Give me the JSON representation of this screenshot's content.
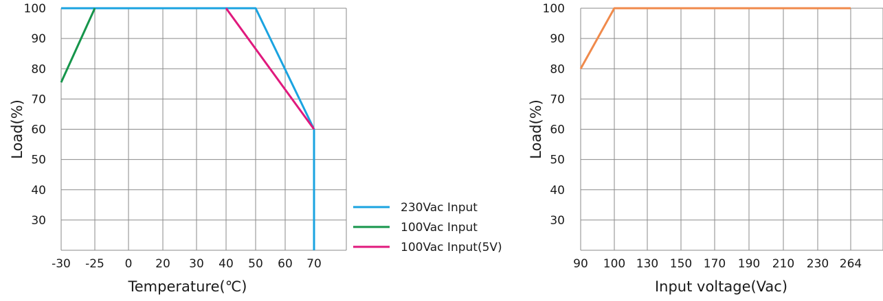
{
  "chart_data": [
    {
      "type": "line",
      "xlabel": "Temperature(℃)",
      "ylabel": "Load(%)",
      "x_ticks": [
        "-30",
        "-25",
        "0",
        "20",
        "30",
        "40",
        "50",
        "60",
        "70"
      ],
      "y_ticks": [
        "30",
        "40",
        "50",
        "60",
        "70",
        "80",
        "90",
        "100"
      ],
      "grid": true,
      "legend": "right",
      "series": [
        {
          "name": "230Vac Input",
          "color": "#1aa3e0",
          "points": [
            [
              "-30",
              100
            ],
            [
              "50",
              100
            ],
            [
              "70",
              60
            ],
            [
              "70",
              20
            ]
          ]
        },
        {
          "name": "100Vac Input",
          "color": "#16954b",
          "points": [
            [
              "-30",
              75.5
            ],
            [
              "-25",
              100
            ]
          ]
        },
        {
          "name": "100Vac Input(5V)",
          "color": "#e0197d",
          "points": [
            [
              "40",
              100
            ],
            [
              "70",
              60
            ]
          ]
        }
      ]
    },
    {
      "type": "line",
      "xlabel": "Input voltage(Vac)",
      "ylabel": "Load(%)",
      "x_ticks": [
        "90",
        "100",
        "130",
        "150",
        "170",
        "190",
        "210",
        "230",
        "264"
      ],
      "y_ticks": [
        "30",
        "40",
        "50",
        "60",
        "70",
        "80",
        "90",
        "100"
      ],
      "grid": true,
      "series": [
        {
          "color": "#f08a4b",
          "points": [
            [
              "90",
              80
            ],
            [
              "100",
              100
            ],
            [
              "264",
              100
            ]
          ]
        }
      ]
    }
  ]
}
